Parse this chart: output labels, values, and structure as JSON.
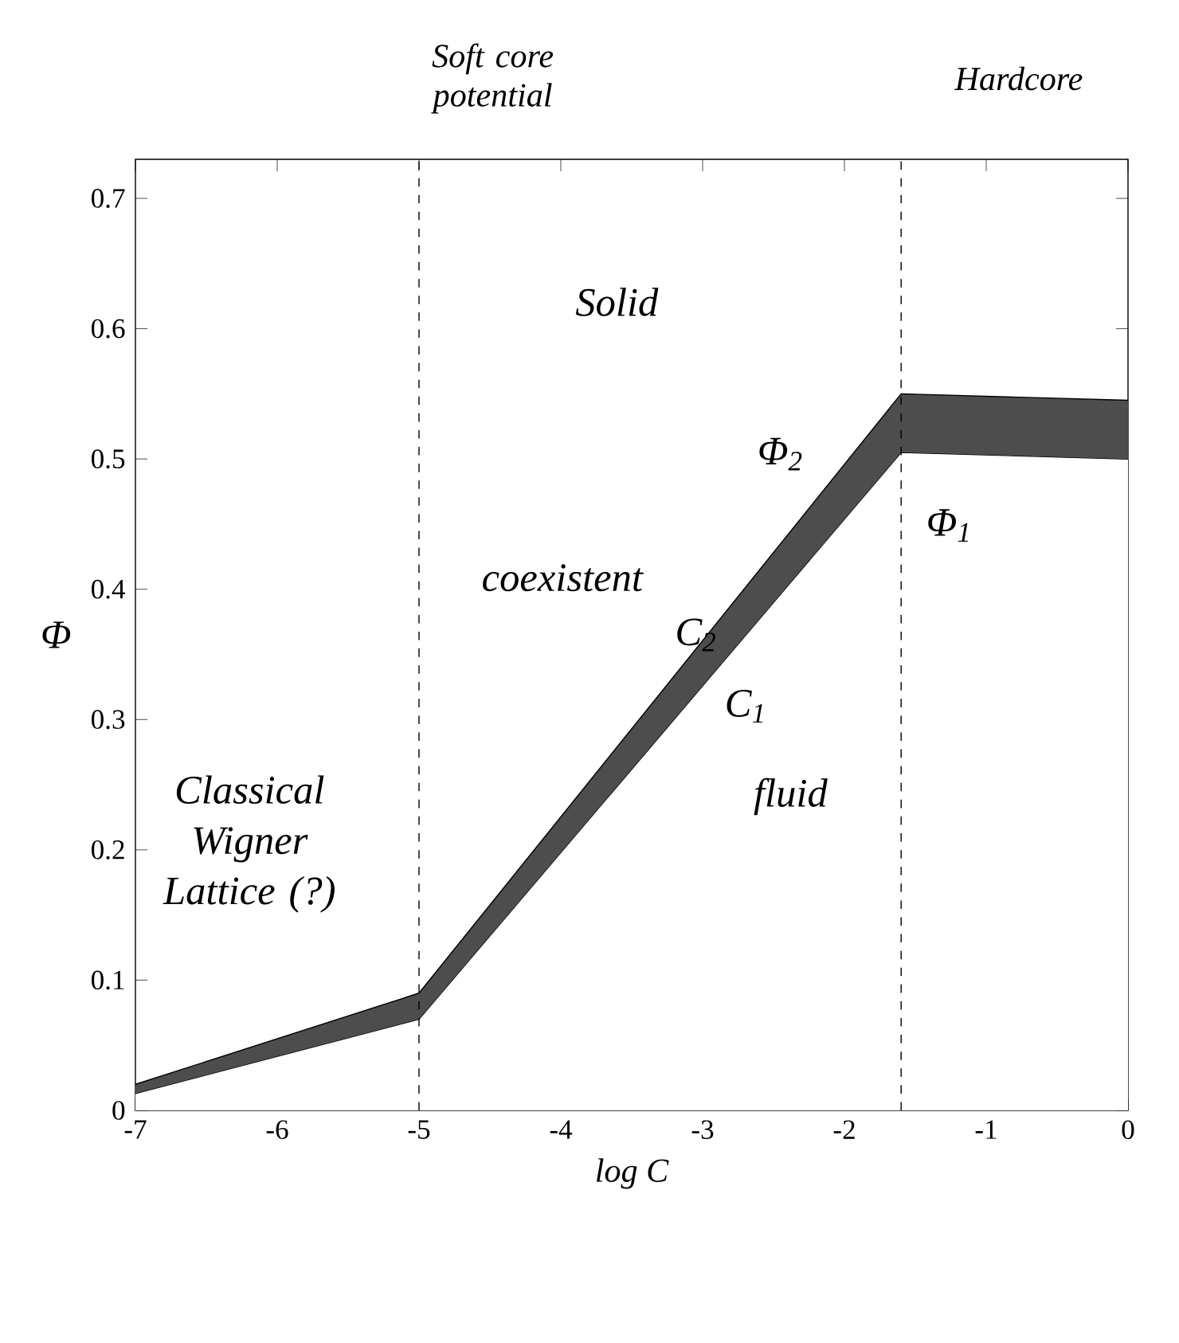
{
  "chart_data": {
    "type": "area",
    "xlabel": "log C",
    "ylabel": "Φ",
    "x": [
      -7,
      -5,
      -1.6,
      0
    ],
    "series": [
      {
        "color": "#ffffff",
        "values": [
          0.013,
          0.07,
          0.505,
          0.5
        ]
      },
      {
        "color": "#4d4d4d",
        "values": [
          0.007,
          0.02,
          0.045,
          0.045
        ]
      }
    ],
    "stacked": true,
    "xlim": [
      -7,
      0
    ],
    "xticks": [
      -7,
      -6,
      -5,
      -4,
      -3,
      -2,
      -1,
      0
    ],
    "ylim": [
      0,
      0.73
    ],
    "yticks": [
      0,
      0.1,
      0.2,
      0.3,
      0.4,
      0.5,
      0.6,
      0.7
    ],
    "grid": false,
    "ref_lines": [
      {
        "axis": "x",
        "value": -5,
        "line_style": "dashed",
        "color": "#000000"
      },
      {
        "axis": "x",
        "value": -1.6,
        "line_style": "dashed",
        "color": "#000000"
      }
    ],
    "annotations": [
      "Soft core potential",
      "Hardcore",
      "Solid",
      "coexistent",
      "fluid",
      "Classical Wigner Lattice (?)",
      "Φ$_{2}$",
      "Φ$_{1}$",
      "C$_{2}$",
      "C$_{1}$"
    ]
  }
}
